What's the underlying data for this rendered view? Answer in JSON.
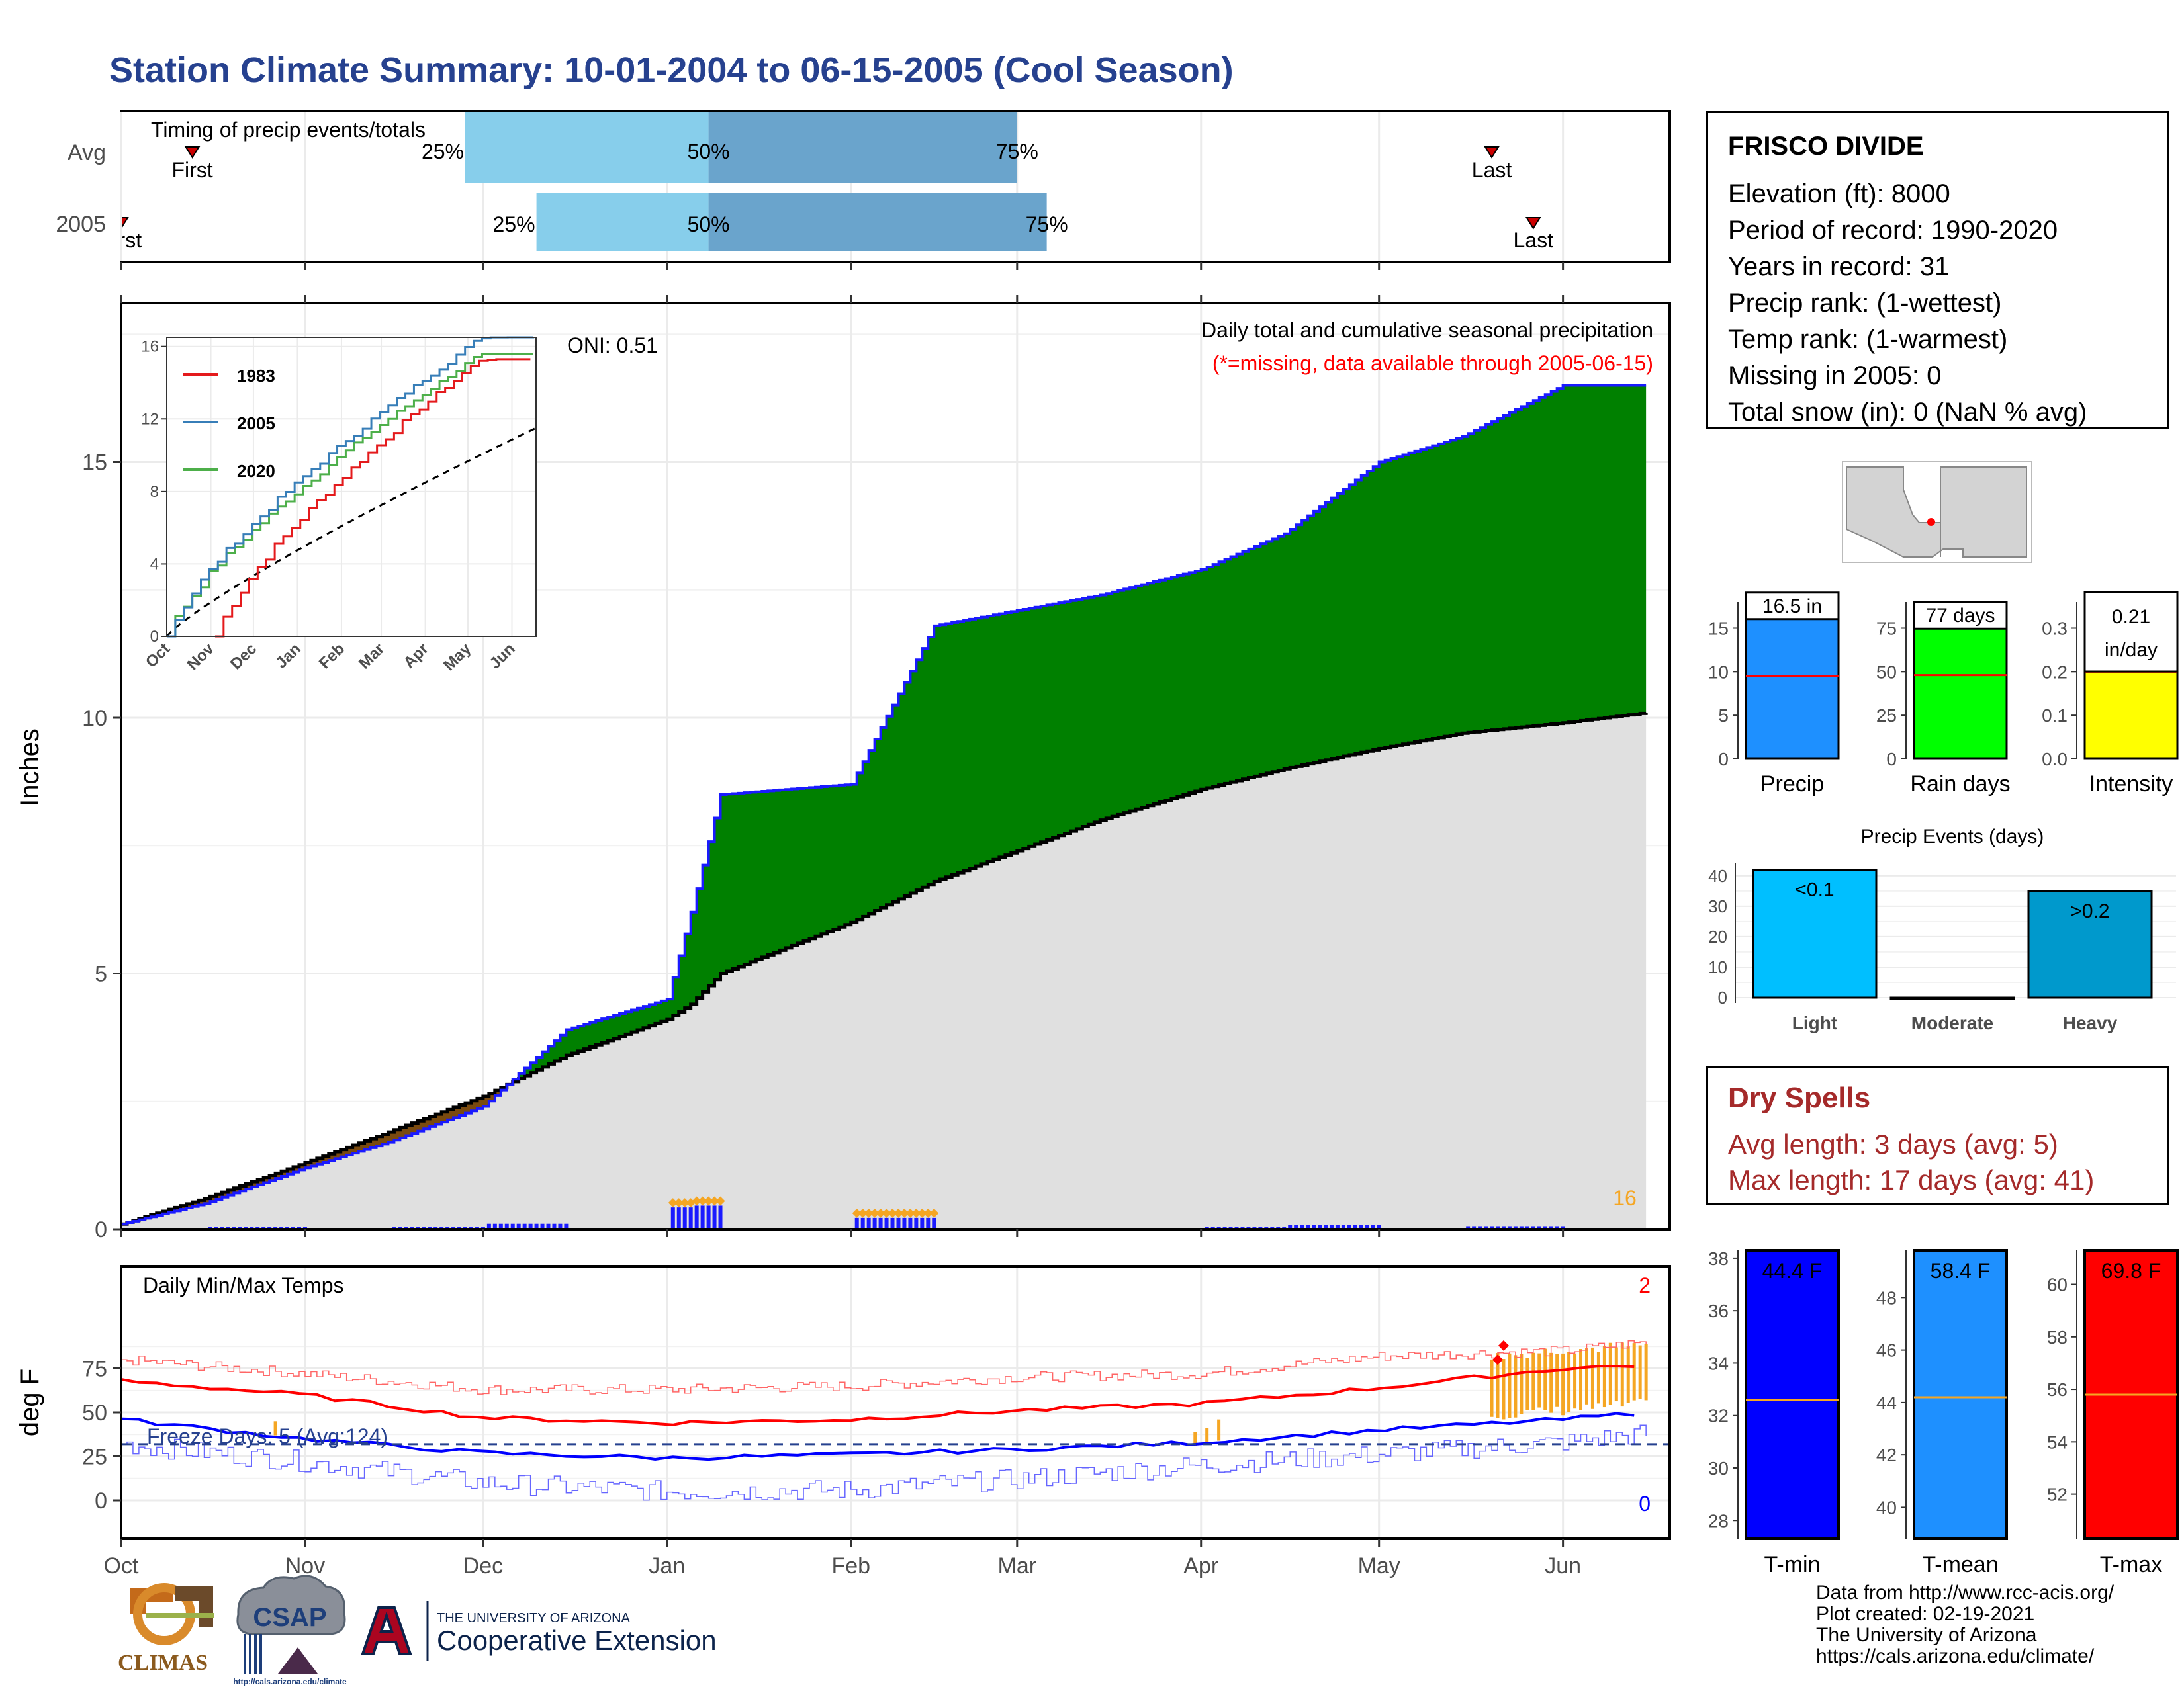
{
  "title": "Station Climate Summary: 10-01-2004 to 06-15-2005 (Cool Season)",
  "colors": {
    "title": "#26418f",
    "bar_light": "#87ceeb",
    "bar_dark": "#6aa4cc",
    "cum_green": "#008000",
    "cum_brown": "#7a4a0f",
    "cum_line": "#1a1aff",
    "avg_fill": "#e0e0e0",
    "tmax": "#ff0000",
    "tmin": "#0000ff",
    "precip_bar": "#1e90ff",
    "raindays_bar": "#00ff00",
    "intensity_bar": "#ffff00",
    "light_bar": "#00bfff",
    "heavy_bar": "#0099cc",
    "orange": "#f5a623"
  },
  "timing": {
    "label": "Timing of precip events/totals",
    "rows": [
      {
        "name": "Avg",
        "first_label": "First",
        "last_label": "Last",
        "first_date": "2004-10-13",
        "last_date": "2005-05-20",
        "p25_date": "2004-11-28",
        "p50_date": "2005-01-08",
        "p75_date": "2005-03-01",
        "p25_label": "25%",
        "p50_label": "50%",
        "p75_label": "75%"
      },
      {
        "name": "2005",
        "first_label": "First",
        "last_label": "Last",
        "first_date": "2004-10-01",
        "last_date": "2005-05-27",
        "p25_date": "2004-12-10",
        "p50_date": "2005-01-08",
        "p75_date": "2005-03-06",
        "p25_label": "25%",
        "p50_label": "50%",
        "p75_label": "75%"
      }
    ]
  },
  "main_panel": {
    "ylabel": "Inches",
    "oni_label": "ONI: 0.51",
    "subtitle": "Daily total and cumulative seasonal precipitation",
    "missing_note": "(*=missing, data available through 2005-06-15)",
    "count_label": "16",
    "yticks": [
      "0",
      "5",
      "10",
      "15"
    ]
  },
  "inset": {
    "legend": [
      "1983",
      "2005",
      "2020"
    ],
    "yticks": [
      "0",
      "4",
      "8",
      "12",
      "16"
    ],
    "xticks": [
      "Oct",
      "Nov",
      "Dec",
      "Jan",
      "Feb",
      "Mar",
      "Apr",
      "May",
      "Jun"
    ]
  },
  "temp_panel": {
    "ylabel": "deg F",
    "label": "Daily Min/Max Temps",
    "freeze_label": "Freeze Days: 5 (Avg:124)",
    "tmax_count": "2",
    "tmin_count": "0",
    "yticks": [
      "0",
      "25",
      "50",
      "75"
    ]
  },
  "months": [
    "Oct",
    "Nov",
    "Dec",
    "Jan",
    "Feb",
    "Mar",
    "Apr",
    "May",
    "Jun"
  ],
  "station": {
    "name": "FRISCO DIVIDE",
    "lines": [
      "Elevation (ft): 8000",
      "Period of record: 1990-2020",
      "Years in record: 31",
      "Precip rank:  (1-wettest)",
      "Temp rank:  (1-warmest)",
      "Missing in 2005: 0",
      "Total snow (in): 0 (NaN % avg)"
    ]
  },
  "summary_bars": {
    "precip": {
      "label": "Precip",
      "value_label": "16.5 in",
      "value": 16.5,
      "avg": 9.5,
      "yticks": [
        "0",
        "5",
        "10",
        "15"
      ],
      "ymax": 18
    },
    "rain_days": {
      "label": "Rain days",
      "value_label": "77 days",
      "value": 77,
      "avg": 48,
      "yticks": [
        "0",
        "25",
        "50",
        "75"
      ],
      "ymax": 90
    },
    "intensity": {
      "label": "Intensity",
      "value_label_1": "0.21",
      "value_label_2": "in/day",
      "value": 0.21,
      "avg": 0.2,
      "yticks": [
        "0.0",
        "0.1",
        "0.2",
        "0.3"
      ],
      "ymax": 0.36
    }
  },
  "precip_events": {
    "title": "Precip Events (days)",
    "categories": [
      "Light",
      "Moderate",
      "Heavy"
    ],
    "values": [
      42,
      0,
      35
    ],
    "labels": [
      "<0.1",
      "",
      ">0.2"
    ],
    "yticks": [
      "0",
      "10",
      "20",
      "30",
      "40"
    ]
  },
  "dry_spells": {
    "title": "Dry Spells",
    "avg_line": "Avg length: 3 days (avg: 5)",
    "max_line": "Max length: 17 days (avg: 41)"
  },
  "temp_bars": {
    "tmin": {
      "label": "T-min",
      "value_label": "44.4 F",
      "value": 44.4,
      "avg": 32.6,
      "yticks": [
        "28",
        "30",
        "32",
        "34",
        "36",
        "38"
      ],
      "ymin": 27.3,
      "ymax": 38.3
    },
    "tmean": {
      "label": "T-mean",
      "value_label": "58.4 F",
      "value": 58.4,
      "avg": 44.2,
      "yticks": [
        "40",
        "42",
        "44",
        "46",
        "48"
      ],
      "ymin": 38.8,
      "ymax": 49.8
    },
    "tmax": {
      "label": "T-max",
      "value_label": "69.8 F",
      "value": 69.8,
      "avg": 55.8,
      "yticks": [
        "52",
        "54",
        "56",
        "58",
        "60"
      ],
      "ymin": 50.3,
      "ymax": 61.3
    }
  },
  "logos": {
    "climas": "CLIMAS",
    "csap": "CSAP",
    "csap_url": "http://cals.arizona.edu/climate",
    "ua_small": "THE UNIVERSITY OF ARIZONA",
    "ua_big": "Cooperative Extension"
  },
  "credits": [
    "Data from http://www.rcc-acis.org/",
    "Plot created: 02-19-2021",
    "The University of Arizona",
    "https://cals.arizona.edu/climate/"
  ],
  "chart_data": [
    {
      "type": "area",
      "title": "Daily total and cumulative seasonal precipitation",
      "ylabel": "Inches",
      "ylim": [
        0,
        18
      ],
      "x": [
        "2004-10-01",
        "2004-10-15",
        "2004-11-01",
        "2004-11-15",
        "2004-12-01",
        "2004-12-15",
        "2005-01-01",
        "2005-01-05",
        "2005-01-10",
        "2005-02-01",
        "2005-02-15",
        "2005-03-01",
        "2005-03-15",
        "2005-04-01",
        "2005-04-15",
        "2005-05-01",
        "2005-05-15",
        "2005-06-01",
        "2005-06-15"
      ],
      "series": [
        {
          "name": "2005",
          "values": [
            0.1,
            0.5,
            1.2,
            1.7,
            2.4,
            3.9,
            4.5,
            6.2,
            8.5,
            8.7,
            11.8,
            12.1,
            12.4,
            12.9,
            13.6,
            15.0,
            15.5,
            16.5,
            16.5
          ]
        },
        {
          "name": "Avg",
          "values": [
            0.1,
            0.6,
            1.3,
            1.9,
            2.6,
            3.4,
            4.1,
            4.4,
            5.0,
            6.0,
            6.8,
            7.4,
            8.0,
            8.6,
            9.0,
            9.4,
            9.7,
            9.9,
            10.1
          ]
        }
      ]
    },
    {
      "type": "line",
      "title": "Daily Min/Max Temps",
      "ylabel": "deg F",
      "ylim": [
        -15,
        95
      ],
      "x": [
        "2004-10-01",
        "2004-11-01",
        "2004-12-01",
        "2005-01-01",
        "2005-02-01",
        "2005-03-01",
        "2005-04-01",
        "2005-05-01",
        "2005-06-01",
        "2005-06-15"
      ],
      "series": [
        {
          "name": "Avg max",
          "values": [
            68,
            60,
            47,
            44,
            46,
            51,
            55,
            64,
            75,
            77
          ]
        },
        {
          "name": "Avg min",
          "values": [
            46,
            35,
            27,
            24,
            26,
            29,
            33,
            40,
            46,
            50
          ]
        },
        {
          "name": "Record max",
          "values": [
            80,
            72,
            63,
            63,
            65,
            70,
            72,
            82,
            85,
            90
          ]
        },
        {
          "name": "Record min",
          "values": [
            32,
            22,
            10,
            5,
            6,
            12,
            20,
            26,
            33,
            38
          ]
        }
      ]
    },
    {
      "type": "bar",
      "title": "Precip Events (days)",
      "categories": [
        "Light",
        "Moderate",
        "Heavy"
      ],
      "values": [
        42,
        0,
        35
      ]
    }
  ]
}
